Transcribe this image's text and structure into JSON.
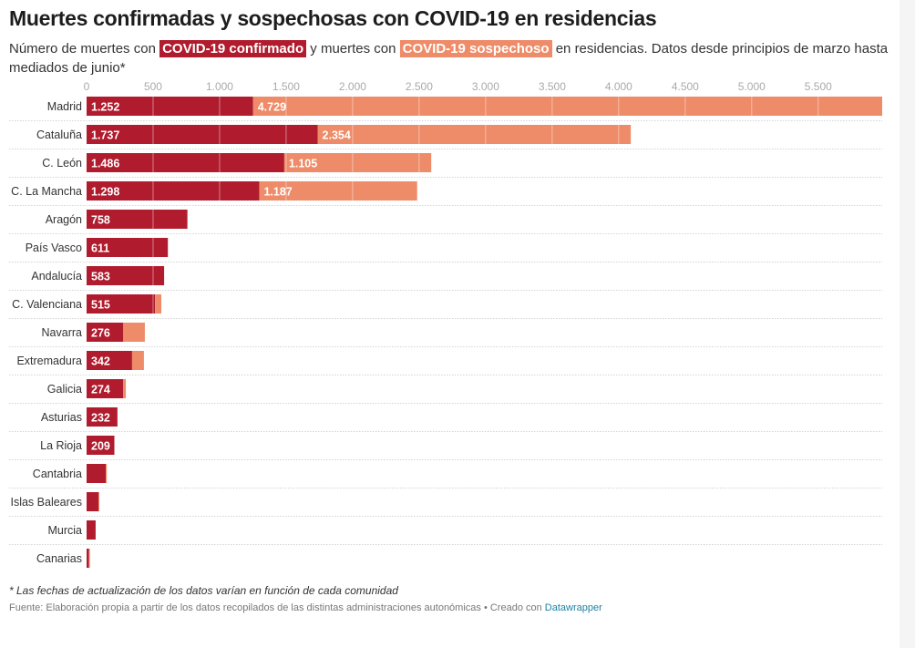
{
  "title": "Muertes confirmadas y sospechosas con COVID-19 en residencias",
  "subtitle": {
    "prefix": "Número de muertes con ",
    "confirmed_label": "COVID-19 confirmado",
    "middle": " y muertes con ",
    "suspected_label": "COVID-19 sospechoso",
    "suffix": " en residencias. Datos desde principios de marzo hasta mediados de junio*"
  },
  "colors": {
    "confirmed": "#b01c2e",
    "suspected": "#ee8b68",
    "link": "#1d81a2"
  },
  "footer": {
    "note": "* Las fechas de actualización de los datos varían en función de cada comunidad",
    "source_text": "Fuente: Elaboración propia a partir de los datos recopilados de las distintas administraciones autonómicas • Creado con ",
    "source_link": "Datawrapper"
  },
  "chart_data": {
    "type": "bar",
    "orientation": "horizontal",
    "stacked": true,
    "title": "Muertes confirmadas y sospechosas con COVID-19 en residencias",
    "xlabel": "",
    "ylabel": "",
    "xlim": [
      0,
      5981
    ],
    "x_ticks": [
      0,
      500,
      1000,
      1500,
      2000,
      2500,
      3000,
      3500,
      4000,
      4500,
      5000,
      5500
    ],
    "x_tick_labels": [
      "0",
      "500",
      "1.000",
      "1.500",
      "2.000",
      "2.500",
      "3.000",
      "3.500",
      "4.000",
      "4.500",
      "5.000",
      "5.500"
    ],
    "grid": true,
    "legend": "inline-subtitle",
    "categories": [
      "Madrid",
      "Cataluña",
      "C. León",
      "C. La Mancha",
      "Aragón",
      "País Vasco",
      "Andalucía",
      "C. Valenciana",
      "Navarra",
      "Extremadura",
      "Galicia",
      "Asturias",
      "La Rioja",
      "Cantabria",
      "Islas Baleares",
      "Murcia",
      "Canarias"
    ],
    "series": [
      {
        "name": "COVID-19 confirmado",
        "color": "#b01c2e",
        "values": [
          1252,
          1737,
          1486,
          1298,
          758,
          611,
          583,
          515,
          276,
          342,
          274,
          232,
          209,
          144,
          89,
          68,
          18
        ],
        "labels": [
          "1.252",
          "1.737",
          "1.486",
          "1.298",
          "758",
          "611",
          "583",
          "515",
          "276",
          "342",
          "274",
          "232",
          "209",
          "",
          "",
          "",
          ""
        ]
      },
      {
        "name": "COVID-19 sospechoso",
        "color": "#ee8b68",
        "values": [
          4729,
          2354,
          1105,
          1187,
          0,
          0,
          0,
          47,
          162,
          89,
          21,
          0,
          0,
          8,
          6,
          0,
          7
        ],
        "labels": [
          "4.729",
          "2.354",
          "1.105",
          "1.187",
          "",
          "",
          "",
          "",
          "",
          "",
          "",
          "",
          "",
          "",
          "",
          "",
          ""
        ]
      }
    ]
  }
}
